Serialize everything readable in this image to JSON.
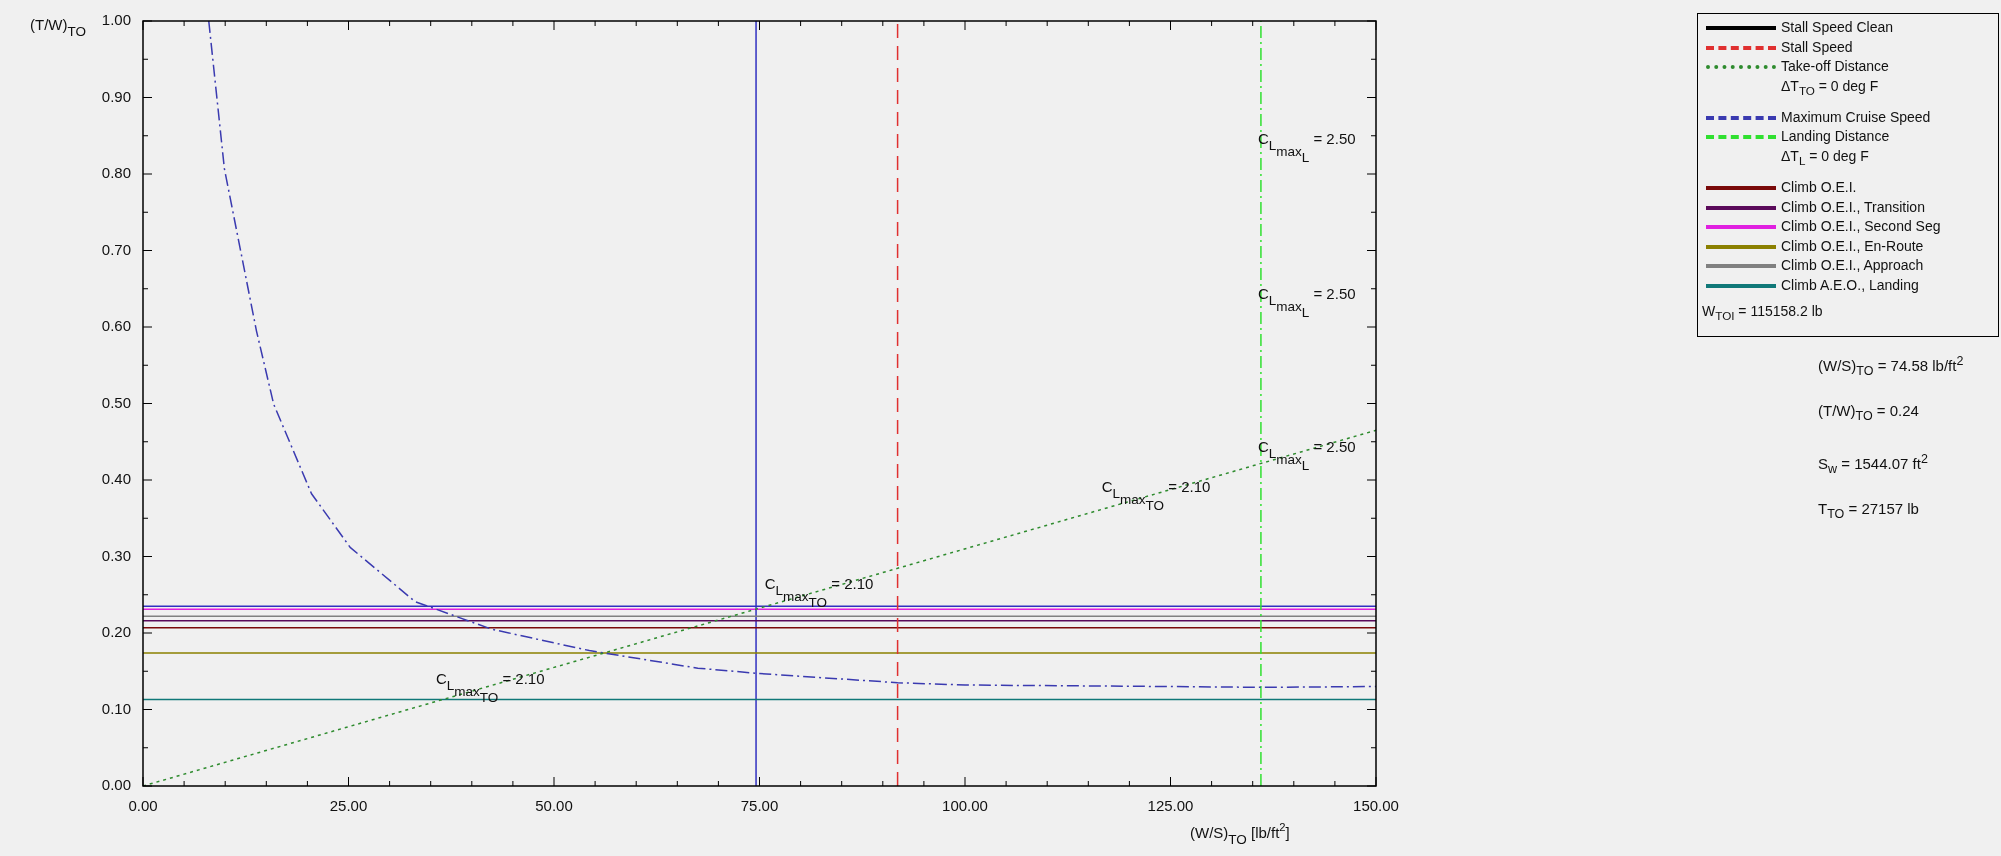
{
  "chart_data": {
    "type": "line",
    "xlabel": "(W/S)$_{TO}$ [lb/ft$^{2}$]",
    "ylabel": "(T/W)$_{TO}$",
    "xlim": [
      0,
      150
    ],
    "ylim": [
      0,
      1
    ],
    "xticks": [
      {
        "value": 0,
        "label": "0.00"
      },
      {
        "value": 5,
        "label": null
      },
      {
        "value": 10,
        "label": null
      },
      {
        "value": 15,
        "label": null
      },
      {
        "value": 20,
        "label": null
      },
      {
        "value": 25,
        "label": "25.00"
      },
      {
        "value": 30,
        "label": null
      },
      {
        "value": 35,
        "label": null
      },
      {
        "value": 40,
        "label": null
      },
      {
        "value": 45,
        "label": null
      },
      {
        "value": 50,
        "label": "50.00"
      },
      {
        "value": 55,
        "label": null
      },
      {
        "value": 60,
        "label": null
      },
      {
        "value": 65,
        "label": null
      },
      {
        "value": 70,
        "label": null
      },
      {
        "value": 75,
        "label": "75.00"
      },
      {
        "value": 80,
        "label": null
      },
      {
        "value": 85,
        "label": null
      },
      {
        "value": 90,
        "label": null
      },
      {
        "value": 95,
        "label": null
      },
      {
        "value": 100,
        "label": "100.00"
      },
      {
        "value": 105,
        "label": null
      },
      {
        "value": 110,
        "label": null
      },
      {
        "value": 115,
        "label": null
      },
      {
        "value": 120,
        "label": null
      },
      {
        "value": 125,
        "label": "125.00"
      },
      {
        "value": 130,
        "label": null
      },
      {
        "value": 135,
        "label": null
      },
      {
        "value": 140,
        "label": null
      },
      {
        "value": 145,
        "label": null
      },
      {
        "value": 150,
        "label": "150.00"
      }
    ],
    "yticks": [
      {
        "value": 0,
        "label": "0.00"
      },
      {
        "value": 0.05,
        "label": null
      },
      {
        "value": 0.1,
        "label": "0.10"
      },
      {
        "value": 0.15,
        "label": null
      },
      {
        "value": 0.2,
        "label": "0.20"
      },
      {
        "value": 0.25,
        "label": null
      },
      {
        "value": 0.3,
        "label": "0.30"
      },
      {
        "value": 0.35,
        "label": null
      },
      {
        "value": 0.4,
        "label": "0.40"
      },
      {
        "value": 0.45,
        "label": null
      },
      {
        "value": 0.5,
        "label": "0.50"
      },
      {
        "value": 0.55,
        "label": null
      },
      {
        "value": 0.6,
        "label": "0.60"
      },
      {
        "value": 0.65,
        "label": null
      },
      {
        "value": 0.7,
        "label": "0.70"
      },
      {
        "value": 0.75,
        "label": null
      },
      {
        "value": 0.8,
        "label": "0.80"
      },
      {
        "value": 0.85,
        "label": null
      },
      {
        "value": 0.9,
        "label": "0.90"
      },
      {
        "value": 0.95,
        "label": null
      },
      {
        "value": 1,
        "label": "1.00"
      }
    ],
    "legend": "top right",
    "series": [
      {
        "name": "Stall Speed Clean",
        "color": "#000000",
        "line_style": "solid"
      },
      {
        "name": "Stall Speed",
        "color": "#e03030",
        "line_style": "dashed",
        "x": [
          91.8,
          91.8
        ],
        "values": [
          0,
          1
        ]
      },
      {
        "name": "Take-off Distance\nΔT$_{TO}$ = 0 deg F",
        "color": "#2e8b2e",
        "line_style": "dotted",
        "x": [
          0,
          150
        ],
        "values": [
          0,
          0.465
        ]
      },
      {
        "name": "Maximum Cruise Speed",
        "color": "#3a3ab0",
        "line_style": "dashdot",
        "x": [
          8.0,
          9.9,
          13.8,
          15.9,
          20.5,
          25.2,
          33.1,
          42.4,
          54.3,
          67.5,
          75,
          91.8,
          100,
          125,
          136,
          150
        ],
        "values": [
          1.0,
          0.807,
          0.595,
          0.499,
          0.382,
          0.312,
          0.241,
          0.205,
          0.177,
          0.154,
          0.147,
          0.135,
          0.132,
          0.13,
          0.129,
          0.13
        ]
      },
      {
        "name": "Landing Distance\nΔT$_{L}$ = 0 deg F",
        "color": "#30e030",
        "line_style": "dashdot",
        "x": [
          136,
          136
        ],
        "values": [
          0,
          1
        ]
      },
      {
        "name": "Climb O.E.I.",
        "color": "#7a0a0a",
        "line_style": "solid",
        "x": [
          0,
          150
        ],
        "values": [
          0.207,
          0.207
        ]
      },
      {
        "name": "Climb O.E.I., Transition",
        "color": "#5a0a5a",
        "line_style": "solid",
        "x": [
          0,
          150
        ],
        "values": [
          0.216,
          0.216
        ]
      },
      {
        "name": "Climb O.E.I., Second Seg",
        "color": "#e020e0",
        "line_style": "solid",
        "x": [
          0,
          150
        ],
        "values": [
          0.231,
          0.231
        ]
      },
      {
        "name": "Climb O.E.I., En-Route",
        "color": "#8b8000",
        "line_style": "solid",
        "x": [
          0,
          150
        ],
        "values": [
          0.174,
          0.174
        ]
      },
      {
        "name": "Climb O.E.I., Approach",
        "color": "#808080",
        "line_style": "solid",
        "x": [
          0,
          150
        ],
        "values": [
          0.222,
          0.222
        ]
      },
      {
        "name": "Climb A.E.O., Landing",
        "color": "#107878",
        "line_style": "solid",
        "x": [
          0,
          150
        ],
        "values": [
          0.113,
          0.113
        ]
      }
    ],
    "ref_lines": [
      {
        "axis": "x",
        "value": 74.58,
        "color": "#3030c0"
      },
      {
        "axis": "y",
        "value": 0.235,
        "color": "#3030c0"
      }
    ],
    "annotations": [
      {
        "text": "C$_{L}$$_{max}$$_{TO}$ = 2.10",
        "x": 36,
        "y": 0.112
      },
      {
        "text": "C$_{L}$$_{max}$$_{TO}$ = 2.10",
        "x": 76,
        "y": 0.236
      },
      {
        "text": "C$_{L}$$_{max}$$_{TO}$ = 2.10",
        "x": 117,
        "y": 0.363
      },
      {
        "text": "C$_{L}$$_{max}$$_{L}$ = 2.50",
        "x": 136.0,
        "y": 0.416
      },
      {
        "text": "C$_{L}$$_{max}$$_{L}$ = 2.50",
        "x": 136.0,
        "y": 0.616
      },
      {
        "text": "C$_{L}$$_{max}$$_{L}$ = 2.50",
        "x": 136.0,
        "y": 0.818
      },
      "W$_{TO}$$_{I}$ = 115158.2 lb",
      "(W/S)$_{TO}$ = 74.58 lb/ft$^{2}$",
      "(T/W)$_{TO}$ = 0.24",
      "S$_{w}$ = 1544.07 ft$^{2}$",
      "T$_{TO}$ = 27157 lb"
    ]
  }
}
